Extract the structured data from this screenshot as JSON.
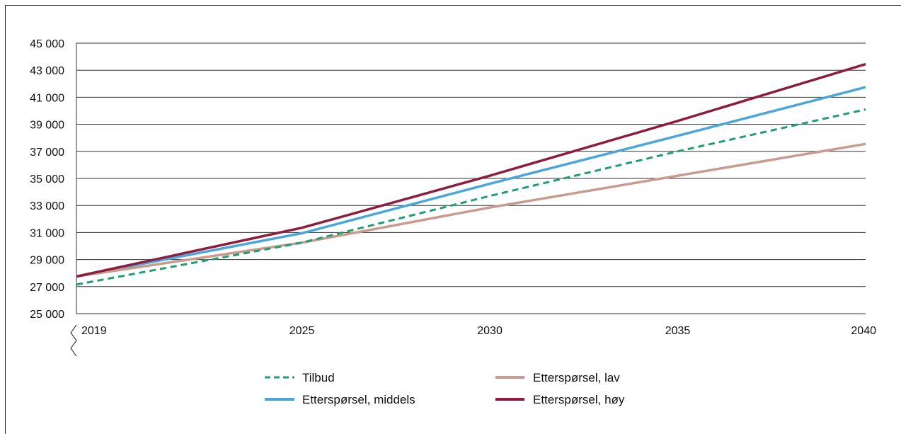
{
  "chart_data": {
    "type": "line",
    "title": "",
    "xlabel": "",
    "ylabel": "",
    "x_ticks": [
      2019,
      2025,
      2030,
      2035,
      2040
    ],
    "x_tick_labels": [
      "2019",
      "2025",
      "2030",
      "2035",
      "2040"
    ],
    "xlim": [
      2019,
      2040
    ],
    "ylim": [
      25000,
      45000
    ],
    "y_ticks": [
      25000,
      27000,
      29000,
      31000,
      33000,
      35000,
      37000,
      39000,
      41000,
      43000,
      45000
    ],
    "y_tick_labels": [
      "25 000",
      "27 000",
      "29 000",
      "31 000",
      "33 000",
      "35 000",
      "37 000",
      "39 000",
      "41 000",
      "43 000",
      "45 000"
    ],
    "grid": "horizontal",
    "legend_position": "bottom",
    "series": [
      {
        "name": "Tilbud",
        "color": "#1f9e72",
        "dash": "dashed",
        "x": [
          2019,
          2025,
          2030,
          2035,
          2040
        ],
        "values": [
          27150,
          30250,
          33700,
          37000,
          40100
        ]
      },
      {
        "name": "Etterspørsel, lav",
        "color": "#c99b8e",
        "dash": "solid",
        "x": [
          2019,
          2025,
          2030,
          2035,
          2040
        ],
        "values": [
          27750,
          30250,
          32850,
          35200,
          37550
        ]
      },
      {
        "name": "Etterspørsel, middels",
        "color": "#4aa7d9",
        "dash": "solid",
        "x": [
          2019,
          2025,
          2030,
          2035,
          2040
        ],
        "values": [
          27750,
          30950,
          34600,
          38150,
          41750
        ]
      },
      {
        "name": "Etterspørsel, høy",
        "color": "#8d1c3d",
        "dash": "solid",
        "x": [
          2019,
          2025,
          2030,
          2035,
          2040
        ],
        "values": [
          27750,
          31350,
          35200,
          39250,
          43450
        ]
      }
    ],
    "legend": {
      "tilbud": "Tilbud",
      "lav": "Etterspørsel, lav",
      "middels": "Etterspørsel, middels",
      "hoy": "Etterspørsel, høy"
    }
  }
}
